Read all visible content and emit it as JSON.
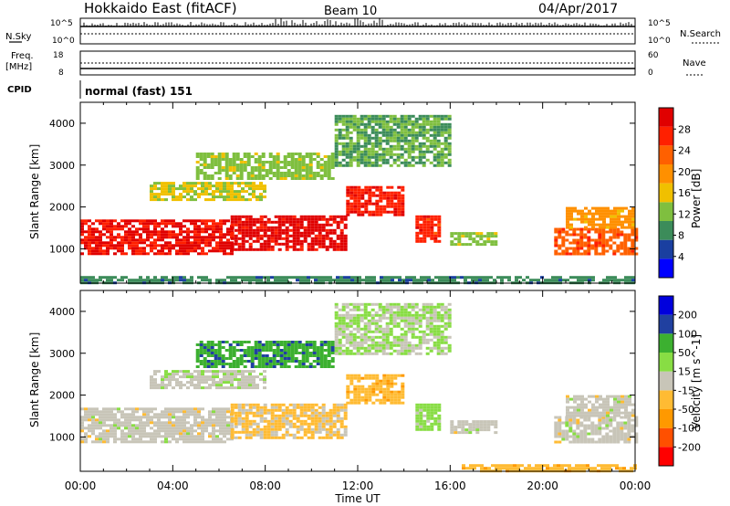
{
  "header": {
    "station": "Hokkaido East (fitACF)",
    "beam": "Beam 10",
    "date": "04/Apr/2017"
  },
  "top_panels": {
    "nsky_label": "N.Sky",
    "nsearch_label": "N.Search",
    "noise_ticks": [
      "10^5",
      "10^0"
    ],
    "freq_label_1": "Freq.",
    "freq_label_2": "[MHz]",
    "freq_ticks": [
      "18",
      "8"
    ],
    "nave_label": "Nave",
    "nave_ticks": [
      "60",
      "0"
    ],
    "cpid_label": "CPID",
    "cpid_value": "normal (fast) 151"
  },
  "colors": {
    "power": [
      "#0000ff",
      "#1a3fa0",
      "#3c8c5a",
      "#7fbf3f",
      "#f0c000",
      "#ff9000",
      "#ff6000",
      "#ff2000",
      "#e00000"
    ],
    "velocity": [
      "#ff0000",
      "#ff5000",
      "#ff9900",
      "#ffbb33",
      "#c8c5b8",
      "#88dd44",
      "#3cb030",
      "#2040a0",
      "#0000dd"
    ]
  },
  "chart_data": [
    {
      "type": "heatmap",
      "title": "",
      "xlabel": "Time UT",
      "ylabel": "Slant Range [km]",
      "xlim": [
        "00:00",
        "00:00"
      ],
      "ylim": [
        180,
        4500
      ],
      "x_ticks": [
        "00:00",
        "04:00",
        "08:00",
        "12:00",
        "16:00",
        "20:00",
        "00:00"
      ],
      "y_ticks": [
        "1000",
        "2000",
        "3000",
        "4000"
      ],
      "colorbar": {
        "label": "Power [dB]",
        "ticks": [
          "28",
          "24",
          "20",
          "16",
          "12",
          "8",
          "4"
        ],
        "range": [
          0,
          30
        ]
      },
      "echo_regions": [
        {
          "t": [
            0.0,
            6.5
          ],
          "r": [
            900,
            1700
          ],
          "value": 27
        },
        {
          "t": [
            6.5,
            11.5
          ],
          "r": [
            1000,
            1800
          ],
          "value": 28
        },
        {
          "t": [
            11.5,
            14.0
          ],
          "r": [
            1800,
            2500
          ],
          "value": 26
        },
        {
          "t": [
            14.5,
            15.5
          ],
          "r": [
            1200,
            1800
          ],
          "value": 25
        },
        {
          "t": [
            16.0,
            18.0
          ],
          "r": [
            1100,
            1400
          ],
          "value": 12
        },
        {
          "t": [
            20.5,
            24.0
          ],
          "r": [
            900,
            1500
          ],
          "value": 22
        },
        {
          "t": [
            21.0,
            24.0
          ],
          "r": [
            1500,
            2000
          ],
          "value": 18
        },
        {
          "t": [
            3.0,
            8.0
          ],
          "r": [
            2200,
            2600
          ],
          "value": 14
        },
        {
          "t": [
            5.0,
            11.0
          ],
          "r": [
            2700,
            3300
          ],
          "value": 12
        },
        {
          "t": [
            11.0,
            16.0
          ],
          "r": [
            3000,
            4200
          ],
          "value": 10
        },
        {
          "t": [
            0.0,
            24.0
          ],
          "r": [
            180,
            350
          ],
          "value": 8
        }
      ]
    },
    {
      "type": "heatmap",
      "title": "",
      "xlabel": "Time UT",
      "ylabel": "Slant Range [km]",
      "xlim": [
        "00:00",
        "00:00"
      ],
      "ylim": [
        180,
        4500
      ],
      "x_ticks": [
        "00:00",
        "04:00",
        "08:00",
        "12:00",
        "16:00",
        "20:00",
        "00:00"
      ],
      "y_ticks": [
        "1000",
        "2000",
        "3000",
        "4000"
      ],
      "colorbar": {
        "label": "Velocity [m s^-1]",
        "ticks": [
          "200",
          "100",
          "50",
          "15",
          "-15",
          "-50",
          "-100",
          "-200"
        ],
        "range": [
          -250,
          250
        ]
      },
      "echo_regions": [
        {
          "t": [
            0.0,
            6.5
          ],
          "r": [
            900,
            1700
          ],
          "value": 0
        },
        {
          "t": [
            6.5,
            11.5
          ],
          "r": [
            1000,
            1800
          ],
          "value": -40
        },
        {
          "t": [
            11.5,
            14.0
          ],
          "r": [
            1800,
            2500
          ],
          "value": -60
        },
        {
          "t": [
            14.5,
            15.5
          ],
          "r": [
            1200,
            1800
          ],
          "value": 40
        },
        {
          "t": [
            16.0,
            18.0
          ],
          "r": [
            1100,
            1400
          ],
          "value": 0
        },
        {
          "t": [
            20.5,
            24.0
          ],
          "r": [
            900,
            1500
          ],
          "value": 0
        },
        {
          "t": [
            21.0,
            24.0
          ],
          "r": [
            1500,
            2000
          ],
          "value": 0
        },
        {
          "t": [
            3.0,
            8.0
          ],
          "r": [
            2200,
            2600
          ],
          "value": 10
        },
        {
          "t": [
            5.0,
            11.0
          ],
          "r": [
            2700,
            3300
          ],
          "value": 120
        },
        {
          "t": [
            11.0,
            16.0
          ],
          "r": [
            3000,
            4200
          ],
          "value": 30
        },
        {
          "t": [
            16.5,
            24.0
          ],
          "r": [
            180,
            350
          ],
          "value": -60
        }
      ]
    }
  ]
}
